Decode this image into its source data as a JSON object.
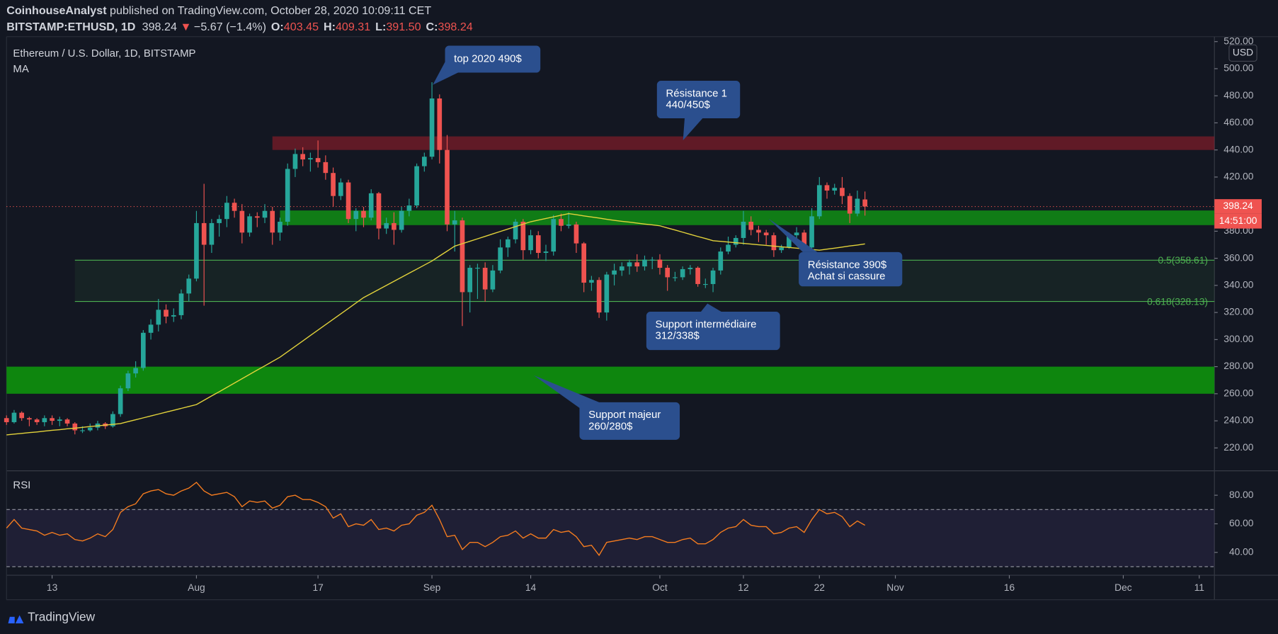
{
  "header": {
    "author": "CoinhouseAnalyst",
    "published": " published on TradingView.com, October 28, 2020 10:09:11 CET",
    "symbol": "BITSTAMP:ETHUSD, 1D",
    "last": "398.24",
    "arrow": "▼",
    "change": "−5.67 (−1.4%)",
    "ohlc": [
      {
        "key": "O:",
        "value": "403.45"
      },
      {
        "key": "H:",
        "value": "409.31"
      },
      {
        "key": "L:",
        "value": "391.50"
      },
      {
        "key": "C:",
        "value": "398.24"
      }
    ]
  },
  "chart_data": [
    {
      "type": "candlestick",
      "title": "Ethereum / U.S. Dollar, 1D, BITSTAMP",
      "currency": "USD",
      "up_color": "#26a69a",
      "down_color": "#ef5350",
      "x": [
        "2020-07-07",
        "2020-07-08",
        "2020-07-09",
        "2020-07-10",
        "2020-07-11",
        "2020-07-12",
        "2020-07-13",
        "2020-07-14",
        "2020-07-15",
        "2020-07-16",
        "2020-07-17",
        "2020-07-18",
        "2020-07-19",
        "2020-07-20",
        "2020-07-21",
        "2020-07-22",
        "2020-07-23",
        "2020-07-24",
        "2020-07-25",
        "2020-07-26",
        "2020-07-27",
        "2020-07-28",
        "2020-07-29",
        "2020-07-30",
        "2020-07-31",
        "2020-08-01",
        "2020-08-02",
        "2020-08-03",
        "2020-08-04",
        "2020-08-05",
        "2020-08-06",
        "2020-08-07",
        "2020-08-08",
        "2020-08-09",
        "2020-08-10",
        "2020-08-11",
        "2020-08-12",
        "2020-08-13",
        "2020-08-14",
        "2020-08-15",
        "2020-08-16",
        "2020-08-17",
        "2020-08-18",
        "2020-08-19",
        "2020-08-20",
        "2020-08-21",
        "2020-08-22",
        "2020-08-23",
        "2020-08-24",
        "2020-08-25",
        "2020-08-26",
        "2020-08-27",
        "2020-08-28",
        "2020-08-29",
        "2020-08-30",
        "2020-08-31",
        "2020-09-01",
        "2020-09-02",
        "2020-09-03",
        "2020-09-04",
        "2020-09-05",
        "2020-09-06",
        "2020-09-07",
        "2020-09-08",
        "2020-09-09",
        "2020-09-10",
        "2020-09-11",
        "2020-09-12",
        "2020-09-13",
        "2020-09-14",
        "2020-09-15",
        "2020-09-16",
        "2020-09-17",
        "2020-09-18",
        "2020-09-19",
        "2020-09-20",
        "2020-09-21",
        "2020-09-22",
        "2020-09-23",
        "2020-09-24",
        "2020-09-25",
        "2020-09-26",
        "2020-09-27",
        "2020-09-28",
        "2020-09-29",
        "2020-09-30",
        "2020-10-01",
        "2020-10-02",
        "2020-10-03",
        "2020-10-04",
        "2020-10-05",
        "2020-10-06",
        "2020-10-07",
        "2020-10-08",
        "2020-10-09",
        "2020-10-10",
        "2020-10-11",
        "2020-10-12",
        "2020-10-13",
        "2020-10-14",
        "2020-10-15",
        "2020-10-16",
        "2020-10-17",
        "2020-10-18",
        "2020-10-19",
        "2020-10-20",
        "2020-10-21",
        "2020-10-22",
        "2020-10-23",
        "2020-10-24",
        "2020-10-25",
        "2020-10-26",
        "2020-10-27",
        "2020-10-28"
      ],
      "open": [
        242,
        239,
        246,
        242,
        241,
        239,
        242,
        240,
        241,
        238,
        233,
        233,
        235,
        238,
        236,
        245,
        264,
        275,
        279,
        305,
        311,
        322,
        317,
        318,
        334,
        345,
        386,
        370,
        386,
        389,
        401,
        395,
        379,
        391,
        390,
        395,
        379,
        387,
        426,
        437,
        433,
        434,
        431,
        423,
        406,
        416,
        389,
        395,
        390,
        408,
        382,
        386,
        381,
        395,
        399,
        428,
        435,
        478,
        440,
        385,
        388,
        335,
        353,
        353,
        337,
        351,
        368,
        374,
        387,
        366,
        377,
        364,
        365,
        389,
        384,
        385,
        371,
        342,
        344,
        320,
        348,
        351,
        354,
        357,
        354,
        359,
        359,
        353,
        346,
        346,
        352,
        353,
        341,
        341,
        351,
        365,
        370,
        375,
        387,
        381,
        379,
        377,
        366,
        368,
        377,
        379,
        368,
        391,
        414,
        410,
        412,
        406,
        393,
        403.45
      ],
      "high": [
        244,
        248,
        247,
        243,
        242,
        244,
        244,
        243,
        242,
        239,
        236,
        238,
        240,
        239,
        247,
        266,
        277,
        284,
        307,
        315,
        330,
        326,
        323,
        337,
        348,
        395,
        415,
        389,
        392,
        406,
        404,
        400,
        393,
        394,
        400,
        398,
        390,
        430,
        441,
        442,
        438,
        447,
        436,
        427,
        419,
        418,
        397,
        398,
        411,
        409,
        390,
        394,
        398,
        404,
        430,
        438,
        490,
        481,
        451,
        395,
        390,
        355,
        356,
        357,
        355,
        374,
        376,
        389,
        389,
        381,
        380,
        370,
        392,
        393,
        394,
        387,
        372,
        347,
        346,
        350,
        356,
        357,
        359,
        363,
        362,
        361,
        363,
        355,
        350,
        354,
        355,
        354,
        345,
        353,
        368,
        376,
        377,
        395,
        391,
        384,
        381,
        379,
        370,
        379,
        383,
        381,
        397,
        420,
        416,
        415,
        420,
        408,
        410,
        409.31
      ],
      "low": [
        237,
        238,
        240,
        236,
        237,
        236,
        237,
        236,
        236,
        230,
        231,
        232,
        233,
        234,
        235,
        243,
        262,
        272,
        277,
        300,
        306,
        312,
        313,
        315,
        328,
        343,
        325,
        364,
        376,
        383,
        390,
        371,
        376,
        383,
        386,
        370,
        373,
        384,
        420,
        428,
        424,
        427,
        418,
        398,
        403,
        386,
        380,
        383,
        388,
        374,
        378,
        370,
        379,
        391,
        397,
        424,
        433,
        430,
        380,
        365,
        310,
        320,
        330,
        328,
        335,
        349,
        361,
        371,
        359,
        363,
        360,
        358,
        362,
        380,
        382,
        364,
        335,
        336,
        316,
        314,
        340,
        347,
        348,
        350,
        351,
        352,
        348,
        336,
        343,
        344,
        348,
        339,
        338,
        335,
        348,
        363,
        368,
        370,
        377,
        372,
        370,
        361,
        364,
        367,
        373,
        366,
        366,
        389,
        404,
        407,
        400,
        386,
        391,
        391.5
      ],
      "close": [
        239,
        246,
        242,
        241,
        239,
        242,
        240,
        241,
        238,
        233,
        233,
        235,
        238,
        236,
        245,
        264,
        275,
        279,
        305,
        311,
        322,
        317,
        318,
        334,
        345,
        386,
        370,
        386,
        389,
        401,
        395,
        379,
        391,
        390,
        395,
        379,
        387,
        426,
        437,
        433,
        434,
        431,
        423,
        406,
        416,
        389,
        395,
        390,
        408,
        382,
        386,
        381,
        395,
        399,
        428,
        435,
        478,
        440,
        385,
        388,
        335,
        353,
        353,
        337,
        351,
        368,
        374,
        387,
        366,
        377,
        364,
        365,
        389,
        384,
        385,
        371,
        342,
        344,
        320,
        348,
        351,
        354,
        357,
        354,
        359,
        359,
        353,
        346,
        346,
        352,
        353,
        341,
        341,
        351,
        365,
        370,
        375,
        387,
        381,
        379,
        377,
        366,
        368,
        377,
        379,
        368,
        391,
        414,
        410,
        412,
        406,
        393,
        404,
        398.24
      ],
      "ma": {
        "name": "MA",
        "color": "#e3d33b",
        "values": [
          229.6,
          230.2,
          230.7,
          231.3,
          231.8,
          232.4,
          233.0,
          233.5,
          234.1,
          234.6,
          235.2,
          235.8,
          236.3,
          236.9,
          237.4,
          238.0,
          239.4,
          240.8,
          242.2,
          243.6,
          245.0,
          246.4,
          247.8,
          249.2,
          250.6,
          252.0,
          255.2,
          258.4,
          261.5,
          264.7,
          267.9,
          271.1,
          274.3,
          277.5,
          280.6,
          283.8,
          287.0,
          291,
          295,
          299,
          303,
          307,
          311,
          315,
          319,
          323,
          327,
          331,
          334,
          337,
          340,
          343,
          346,
          349,
          352,
          355,
          358,
          361.7,
          365.3,
          369,
          370.8,
          372.6,
          374.4,
          376.2,
          378.0,
          379.8,
          381.6,
          383.4,
          385.2,
          387.0,
          388.2,
          389.4,
          390.6,
          391.8,
          393.0,
          392.2,
          391.3,
          390.5,
          389.7,
          388.8,
          388.0,
          387.3,
          386.7,
          386.0,
          385.3,
          384.7,
          384.0,
          382.4,
          380.9,
          379.3,
          377.7,
          376.1,
          374.6,
          373.0,
          372.5,
          372.0,
          371.5,
          371.0,
          370.5,
          370.0,
          369.5,
          369.0,
          368.5,
          368.0,
          367.5,
          367.0,
          366.5,
          366.0,
          366.8,
          367.5,
          368.3,
          369.1,
          369.8,
          370.6
        ]
      },
      "xlim": [
        "2020-07-07",
        "2020-12-13"
      ],
      "xticks": [
        {
          "value": "2020-07-13",
          "label": "13"
        },
        {
          "value": "2020-08-01",
          "label": "Aug"
        },
        {
          "value": "2020-08-17",
          "label": "17"
        },
        {
          "value": "2020-09-01",
          "label": "Sep"
        },
        {
          "value": "2020-09-14",
          "label": "14"
        },
        {
          "value": "2020-10-01",
          "label": "Oct"
        },
        {
          "value": "2020-10-12",
          "label": "12"
        },
        {
          "value": "2020-10-22",
          "label": "22"
        },
        {
          "value": "2020-11-01",
          "label": "Nov"
        },
        {
          "value": "2020-11-16",
          "label": "16"
        },
        {
          "value": "2020-12-01",
          "label": "Dec"
        },
        {
          "value": "2020-12-11",
          "label": "11"
        }
      ],
      "ylim": [
        203.1,
        523.6
      ],
      "yticks": [
        {
          "value": 220,
          "label": "220.00"
        },
        {
          "value": 240,
          "label": "240.00"
        },
        {
          "value": 260,
          "label": "260.00"
        },
        {
          "value": 280,
          "label": "280.00"
        },
        {
          "value": 300,
          "label": "300.00"
        },
        {
          "value": 320,
          "label": "320.00"
        },
        {
          "value": 340,
          "label": "340.00"
        },
        {
          "value": 360,
          "label": "360.00"
        },
        {
          "value": 380,
          "label": "380.00"
        },
        {
          "value": 400,
          "label": "400.00"
        },
        {
          "value": 420,
          "label": "420.00"
        },
        {
          "value": 440,
          "label": "440.00"
        },
        {
          "value": 460,
          "label": "460.00"
        },
        {
          "value": 480,
          "label": "480.00"
        },
        {
          "value": 500,
          "label": "500.00"
        },
        {
          "value": 520,
          "label": "520.00"
        }
      ],
      "zones": [
        {
          "start": "2020-08-11",
          "low": 440,
          "high": 450,
          "color": "rgba(190,30,45,0.45)"
        },
        {
          "start": "2020-08-12",
          "low": 384.5,
          "high": 395.3,
          "color": "rgba(16,150,20,0.8)"
        },
        {
          "start": "2020-07-07",
          "low": 260,
          "high": 280,
          "color": "rgba(14,140,14,0.95)"
        }
      ],
      "fib": {
        "start": "2020-07-16",
        "color": "#4caf50",
        "levels": [
          {
            "value": 358.61,
            "label": "0.5(358.61)"
          },
          {
            "value": 328.13,
            "label": "0.618(328.13)"
          }
        ]
      },
      "annotations": [
        {
          "text": [
            "top 2020 490$"
          ]
        },
        {
          "text": [
            "Résistance 1",
            "440/450$"
          ]
        },
        {
          "text": [
            "Résistance 390$",
            "Achat si cassure"
          ]
        },
        {
          "text": [
            "Support intermédiaire",
            "312/338$"
          ]
        },
        {
          "text": [
            "Support majeur",
            "260/280$"
          ]
        }
      ],
      "price_label": "398.24",
      "countdown": "14:51:00"
    },
    {
      "type": "line",
      "title": "RSI",
      "color": "#f57c1f",
      "values": [
        57,
        63,
        57,
        56,
        55,
        52,
        54,
        52,
        53,
        49,
        48,
        50,
        53,
        51,
        56,
        68,
        72,
        74,
        81,
        83,
        84,
        81,
        80,
        83,
        85,
        89,
        83,
        80,
        81,
        82,
        79,
        72,
        76,
        75,
        76,
        71,
        73,
        79,
        80,
        77,
        77,
        75,
        72,
        64,
        67,
        58,
        60,
        59,
        63,
        56,
        57,
        55,
        59,
        60,
        66,
        68,
        73,
        63,
        51,
        52,
        42,
        47,
        47,
        44,
        47,
        51,
        52,
        55,
        50,
        53,
        50,
        50,
        56,
        54,
        55,
        51,
        44,
        45,
        38,
        47,
        48,
        49,
        50,
        49,
        51,
        51,
        49,
        47,
        47,
        49,
        50,
        46,
        46,
        49,
        54,
        57,
        58,
        63,
        59,
        58,
        58,
        53,
        54,
        57,
        58,
        54,
        63,
        70,
        67,
        68,
        65,
        58,
        62,
        59
      ],
      "ylim": [
        24,
        97.1
      ],
      "yticks": [
        {
          "value": 40,
          "label": "40.00"
        },
        {
          "value": 60,
          "label": "60.00"
        },
        {
          "value": 80,
          "label": "80.00"
        }
      ],
      "band": [
        30,
        70
      ]
    }
  ],
  "footer": {
    "brand": "TradingView"
  }
}
